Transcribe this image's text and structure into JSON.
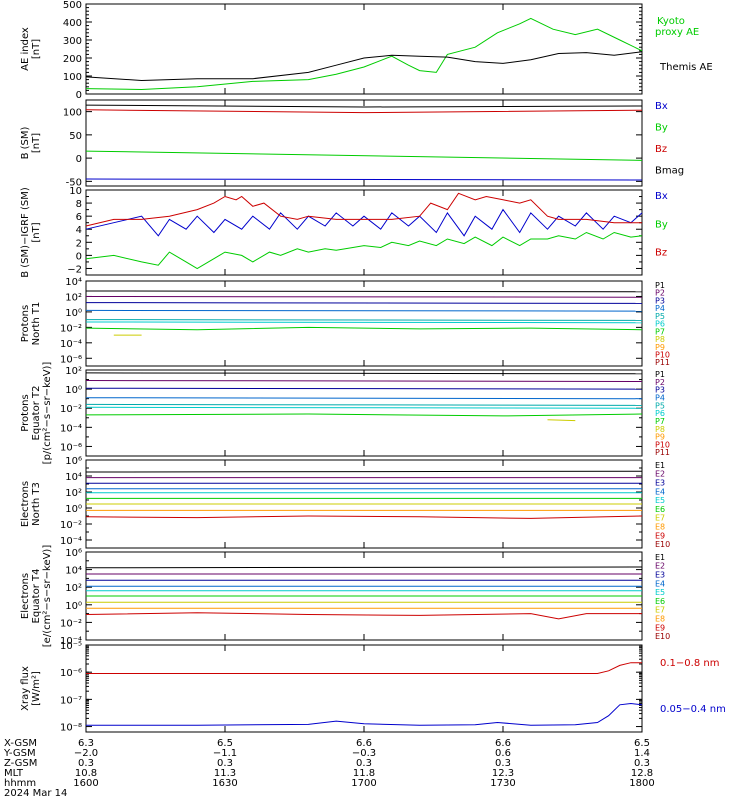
{
  "chart_data": [
    {
      "id": "ae",
      "type": "line",
      "ylabel": [
        "AE index",
        "[nT]"
      ],
      "ylim": [
        0,
        500
      ],
      "yscale": "linear",
      "yticks": [
        0,
        100,
        200,
        300,
        400,
        500
      ],
      "ytick_labels": [
        "0",
        "100",
        "200",
        "300",
        "400",
        "500"
      ],
      "series": [
        {
          "name": "Kyoto proxy AE",
          "color": "#00cc00",
          "x": [
            0,
            10,
            20,
            30,
            40,
            45,
            50,
            55,
            58,
            60,
            63,
            65,
            70,
            74,
            78,
            80,
            84,
            88,
            92,
            96,
            100
          ],
          "y": [
            30,
            25,
            40,
            70,
            80,
            110,
            150,
            210,
            160,
            130,
            120,
            220,
            260,
            340,
            390,
            420,
            360,
            330,
            360,
            300,
            240
          ]
        },
        {
          "name": "Themis AE",
          "color": "#000000",
          "x": [
            0,
            10,
            20,
            30,
            40,
            45,
            50,
            55,
            60,
            65,
            70,
            75,
            80,
            85,
            90,
            95,
            100
          ],
          "y": [
            95,
            75,
            85,
            85,
            120,
            160,
            200,
            215,
            210,
            205,
            180,
            170,
            190,
            225,
            230,
            215,
            235
          ]
        }
      ]
    },
    {
      "id": "bsm",
      "type": "line",
      "ylabel": [
        "B (SM)",
        "[nT]"
      ],
      "ylabel_sub": "x",
      "ylim": [
        -60,
        125
      ],
      "yscale": "linear",
      "yticks": [
        -50,
        0,
        50,
        100
      ],
      "ytick_labels": [
        "-50",
        "0",
        "50",
        "100"
      ],
      "series": [
        {
          "name": "Bx",
          "color": "#0000cc",
          "x": [
            0,
            100
          ],
          "y": [
            -45,
            -47
          ]
        },
        {
          "name": "By",
          "color": "#00cc00",
          "x": [
            0,
            100
          ],
          "y": [
            15,
            -5
          ]
        },
        {
          "name": "Bz",
          "color": "#cc0000",
          "x": [
            0,
            50,
            100
          ],
          "y": [
            104,
            98,
            103
          ]
        },
        {
          "name": "Bmag",
          "color": "#000000",
          "x": [
            0,
            50,
            100
          ],
          "y": [
            114,
            110,
            112
          ]
        }
      ]
    },
    {
      "id": "bigrf",
      "type": "line",
      "ylabel": [
        "B (SM)−IGRF (SM)",
        "[nT]"
      ],
      "ylim": [
        -3,
        10
      ],
      "yscale": "linear",
      "yticks": [
        -2,
        0,
        2,
        4,
        6,
        8,
        10
      ],
      "ytick_labels": [
        "−2",
        "0",
        "2",
        "4",
        "6",
        "8",
        "10"
      ],
      "series": [
        {
          "name": "Bx",
          "color": "#0000cc",
          "x": [
            0,
            5,
            10,
            13,
            15,
            18,
            20,
            23,
            25,
            28,
            30,
            33,
            35,
            38,
            40,
            43,
            45,
            48,
            50,
            53,
            55,
            58,
            60,
            63,
            65,
            68,
            70,
            73,
            75,
            78,
            80,
            83,
            85,
            88,
            90,
            93,
            95,
            98,
            100
          ],
          "y": [
            4,
            5,
            6,
            3,
            5.5,
            4,
            6,
            3.5,
            5.5,
            4,
            6,
            4,
            6.5,
            4,
            6,
            4.5,
            6.5,
            4.5,
            6,
            4,
            6.5,
            4.5,
            6,
            3.5,
            6.5,
            3,
            6,
            4,
            7,
            3.5,
            6.5,
            4,
            6,
            4.5,
            6.5,
            4,
            6,
            5,
            6.5
          ]
        },
        {
          "name": "By",
          "color": "#00cc00",
          "x": [
            0,
            5,
            10,
            13,
            15,
            18,
            20,
            23,
            25,
            28,
            30,
            33,
            35,
            38,
            40,
            43,
            45,
            48,
            50,
            53,
            55,
            58,
            60,
            63,
            65,
            68,
            70,
            73,
            75,
            78,
            80,
            83,
            85,
            88,
            90,
            93,
            95,
            98,
            100
          ],
          "y": [
            -0.5,
            0,
            -1,
            -1.5,
            0.5,
            -1,
            -2,
            -0.5,
            0.5,
            0,
            -1,
            0.5,
            0,
            1,
            0.5,
            1,
            0.8,
            1.2,
            1.5,
            1.2,
            2,
            1.5,
            2.2,
            1.5,
            2.5,
            1.8,
            2.8,
            1.5,
            2.8,
            1.5,
            2.5,
            2.5,
            3,
            2.5,
            3.5,
            2.5,
            3.5,
            2.8,
            3
          ]
        },
        {
          "name": "Bz",
          "color": "#cc0000",
          "x": [
            0,
            5,
            10,
            15,
            20,
            23,
            25,
            27,
            28,
            30,
            32,
            35,
            38,
            40,
            45,
            50,
            55,
            60,
            62,
            65,
            67,
            70,
            72,
            75,
            78,
            80,
            83,
            85,
            90,
            95,
            100
          ],
          "y": [
            4.5,
            5.5,
            5.5,
            6,
            7,
            8,
            9,
            8.5,
            9,
            7.5,
            8,
            6,
            5.5,
            6,
            5.5,
            5.5,
            5.5,
            6,
            8,
            7,
            9.5,
            8.5,
            9,
            8.5,
            8,
            8.5,
            6,
            5.5,
            5.5,
            5,
            5
          ]
        }
      ]
    },
    {
      "id": "pn",
      "type": "line",
      "ylabel": [
        "Protons",
        "North T1"
      ],
      "ylim": [
        -7,
        4
      ],
      "yscale": "log10",
      "yticks": [
        -6,
        -4,
        -2,
        0,
        2,
        4
      ],
      "ytick_labels": [
        "10⁻⁶",
        "10⁻⁴",
        "10⁻²",
        "10⁰",
        "10²",
        "10⁴"
      ],
      "series": [
        {
          "name": "P1",
          "color": "#000000",
          "x": [
            0,
            100
          ],
          "y": [
            2.7,
            2.6
          ]
        },
        {
          "name": "P2",
          "color": "#660066",
          "x": [
            0,
            100
          ],
          "y": [
            2.0,
            1.9
          ]
        },
        {
          "name": "P3",
          "color": "#000099",
          "x": [
            0,
            100
          ],
          "y": [
            1.2,
            1.1
          ]
        },
        {
          "name": "P4",
          "color": "#0066cc",
          "x": [
            0,
            100
          ],
          "y": [
            0.2,
            0.1
          ]
        },
        {
          "name": "P5",
          "color": "#00aaaa",
          "x": [
            0,
            100
          ],
          "y": [
            -1.0,
            -1.1
          ]
        },
        {
          "name": "P6",
          "color": "#00cccc",
          "x": [
            0,
            100
          ],
          "y": [
            -1.3,
            -1.4
          ]
        },
        {
          "name": "P7",
          "color": "#00cc00",
          "x": [
            0,
            20,
            40,
            60,
            80,
            100
          ],
          "y": [
            -2.1,
            -2.3,
            -2.0,
            -2.2,
            -2.1,
            -2.3
          ]
        },
        {
          "name": "P8",
          "color": "#cccc00",
          "x": [
            5,
            10
          ],
          "y": [
            -3.0,
            -3.0
          ]
        },
        {
          "name": "P9",
          "color": "#ff9900",
          "x": [],
          "y": []
        },
        {
          "name": "P10",
          "color": "#cc0000",
          "x": [],
          "y": []
        },
        {
          "name": "P11",
          "color": "#990000",
          "x": [],
          "y": []
        }
      ]
    },
    {
      "id": "pe",
      "type": "line",
      "ylabel": [
        "Protons",
        "Equator T2",
        "[p/(cm²−s−sr−keV)]"
      ],
      "ylim": [
        -7,
        2
      ],
      "yscale": "log10",
      "yticks": [
        -6,
        -4,
        -2,
        0,
        2
      ],
      "ytick_labels": [
        "10⁻⁶",
        "10⁻⁴",
        "10⁻²",
        "10⁰",
        "10²"
      ],
      "series": [
        {
          "name": "P1",
          "color": "#000000",
          "x": [
            0,
            100
          ],
          "y": [
            1.7,
            1.6
          ]
        },
        {
          "name": "P2",
          "color": "#660066",
          "x": [
            0,
            100
          ],
          "y": [
            0.9,
            0.8
          ]
        },
        {
          "name": "P3",
          "color": "#000099",
          "x": [
            0,
            100
          ],
          "y": [
            0.1,
            0.0
          ]
        },
        {
          "name": "P4",
          "color": "#0066cc",
          "x": [
            0,
            100
          ],
          "y": [
            -0.9,
            -1.0
          ]
        },
        {
          "name": "P5",
          "color": "#00aaaa",
          "x": [
            0,
            100
          ],
          "y": [
            -1.6,
            -1.7
          ]
        },
        {
          "name": "P6",
          "color": "#00cccc",
          "x": [
            0,
            100
          ],
          "y": [
            -1.9,
            -2.0
          ]
        },
        {
          "name": "P7",
          "color": "#00cc00",
          "x": [
            0,
            40,
            75,
            100
          ],
          "y": [
            -2.7,
            -2.6,
            -2.8,
            -2.6
          ]
        },
        {
          "name": "P8",
          "color": "#cccc00",
          "x": [
            83,
            88
          ],
          "y": [
            -3.2,
            -3.3
          ]
        },
        {
          "name": "P9",
          "color": "#ff9900",
          "x": [],
          "y": []
        },
        {
          "name": "P10",
          "color": "#cc0000",
          "x": [],
          "y": []
        },
        {
          "name": "P11",
          "color": "#990000",
          "x": [],
          "y": []
        }
      ]
    },
    {
      "id": "en",
      "type": "line",
      "ylabel": [
        "Electrons",
        "North T3"
      ],
      "ylim": [
        -5,
        6
      ],
      "yscale": "log10",
      "yticks": [
        -4,
        -2,
        0,
        2,
        4,
        6
      ],
      "ytick_labels": [
        "10⁻⁴",
        "10⁻²",
        "10⁰",
        "10²",
        "10⁴",
        "10⁶"
      ],
      "series": [
        {
          "name": "E1",
          "color": "#000000",
          "x": [
            0,
            100
          ],
          "y": [
            4.5,
            4.6
          ]
        },
        {
          "name": "E2",
          "color": "#660066",
          "x": [
            0,
            100
          ],
          "y": [
            3.8,
            3.8
          ]
        },
        {
          "name": "E3",
          "color": "#000099",
          "x": [
            0,
            100
          ],
          "y": [
            3.1,
            3.1
          ]
        },
        {
          "name": "E4",
          "color": "#0066cc",
          "x": [
            0,
            100
          ],
          "y": [
            2.4,
            2.4
          ]
        },
        {
          "name": "E5",
          "color": "#00cccc",
          "x": [
            0,
            100
          ],
          "y": [
            1.9,
            1.9
          ]
        },
        {
          "name": "E6",
          "color": "#00cc00",
          "x": [
            0,
            100
          ],
          "y": [
            1.2,
            1.2
          ]
        },
        {
          "name": "E7",
          "color": "#cccc00",
          "x": [
            0,
            100
          ],
          "y": [
            0.5,
            0.5
          ]
        },
        {
          "name": "E8",
          "color": "#ff9900",
          "x": [
            0,
            100
          ],
          "y": [
            -0.3,
            -0.3
          ]
        },
        {
          "name": "E9",
          "color": "#cc0000",
          "x": [
            0,
            20,
            40,
            60,
            80,
            100
          ],
          "y": [
            -1.1,
            -1.2,
            -1.0,
            -1.1,
            -1.3,
            -1.0
          ]
        },
        {
          "name": "E10",
          "color": "#990000",
          "x": [],
          "y": []
        }
      ]
    },
    {
      "id": "ee",
      "type": "line",
      "ylabel": [
        "Electrons",
        "Equator T4",
        "[e/(cm²−s−sr−keV)]"
      ],
      "ylim": [
        -4,
        6
      ],
      "yscale": "log10",
      "yticks": [
        -4,
        -2,
        0,
        2,
        4,
        6
      ],
      "ytick_labels": [
        "10⁻⁴",
        "10⁻²",
        "10⁰",
        "10²",
        "10⁴",
        "10⁶"
      ],
      "series": [
        {
          "name": "E1",
          "color": "#000000",
          "x": [
            0,
            100
          ],
          "y": [
            4.2,
            4.3
          ]
        },
        {
          "name": "E2",
          "color": "#660066",
          "x": [
            0,
            100
          ],
          "y": [
            3.5,
            3.5
          ]
        },
        {
          "name": "E3",
          "color": "#000099",
          "x": [
            0,
            100
          ],
          "y": [
            2.8,
            2.8
          ]
        },
        {
          "name": "E4",
          "color": "#0066cc",
          "x": [
            0,
            100
          ],
          "y": [
            2.1,
            2.1
          ]
        },
        {
          "name": "E5",
          "color": "#00cccc",
          "x": [
            0,
            100
          ],
          "y": [
            1.6,
            1.6
          ]
        },
        {
          "name": "E6",
          "color": "#00cc00",
          "x": [
            0,
            100
          ],
          "y": [
            1.0,
            1.0
          ]
        },
        {
          "name": "E7",
          "color": "#cccc00",
          "x": [
            0,
            100
          ],
          "y": [
            0.3,
            0.3
          ]
        },
        {
          "name": "E8",
          "color": "#ff9900",
          "x": [
            0,
            100
          ],
          "y": [
            -0.4,
            -0.4
          ]
        },
        {
          "name": "E9",
          "color": "#cc0000",
          "x": [
            0,
            20,
            40,
            60,
            80,
            85,
            90,
            100
          ],
          "y": [
            -1.1,
            -0.9,
            -1.1,
            -1.2,
            -1.0,
            -1.6,
            -1.0,
            -1.0
          ]
        },
        {
          "name": "E10",
          "color": "#990000",
          "x": [],
          "y": []
        }
      ]
    },
    {
      "id": "xray",
      "type": "line",
      "ylabel": [
        "Xray flux",
        "[W/m²]"
      ],
      "ylim": [
        -8.2,
        -5.0
      ],
      "yscale": "log10",
      "yticks": [
        -8,
        -7,
        -6,
        -5
      ],
      "ytick_labels": [
        "10⁻⁸",
        "10⁻⁷",
        "10⁻⁶",
        "10⁻⁵"
      ],
      "series": [
        {
          "name": "0.1−0.8 nm",
          "color": "#cc0000",
          "x": [
            0,
            50,
            70,
            80,
            92,
            94,
            96,
            98,
            100
          ],
          "y": [
            -6.05,
            -6.05,
            -6.05,
            -6.05,
            -6.05,
            -5.95,
            -5.75,
            -5.65,
            -5.65
          ]
        },
        {
          "name": "0.05−0.4 nm",
          "color": "#0000cc",
          "x": [
            0,
            20,
            40,
            45,
            50,
            60,
            70,
            74,
            80,
            88,
            92,
            94,
            96,
            98,
            100
          ],
          "y": [
            -7.95,
            -7.95,
            -7.92,
            -7.8,
            -7.9,
            -7.95,
            -7.93,
            -7.85,
            -7.95,
            -7.93,
            -7.85,
            -7.6,
            -7.2,
            -7.15,
            -7.2
          ]
        }
      ]
    }
  ],
  "ephemeris": {
    "rows": [
      {
        "label": "X-GSM",
        "values": [
          "6.3",
          "6.5",
          "6.6",
          "6.6",
          "6.5"
        ]
      },
      {
        "label": "Y-GSM",
        "values": [
          "−2.0",
          "−1.1",
          "−0.3",
          "0.6",
          "1.4"
        ]
      },
      {
        "label": "Z-GSM",
        "values": [
          "0.3",
          "0.3",
          "0.3",
          "0.3",
          "0.3"
        ]
      },
      {
        "label": "MLT",
        "values": [
          "10.8",
          "11.3",
          "11.8",
          "12.3",
          "12.8"
        ]
      },
      {
        "label": "hhmm",
        "values": [
          "1600",
          "1630",
          "1700",
          "1730",
          "1800"
        ]
      }
    ],
    "date": "2024 Mar 14"
  }
}
